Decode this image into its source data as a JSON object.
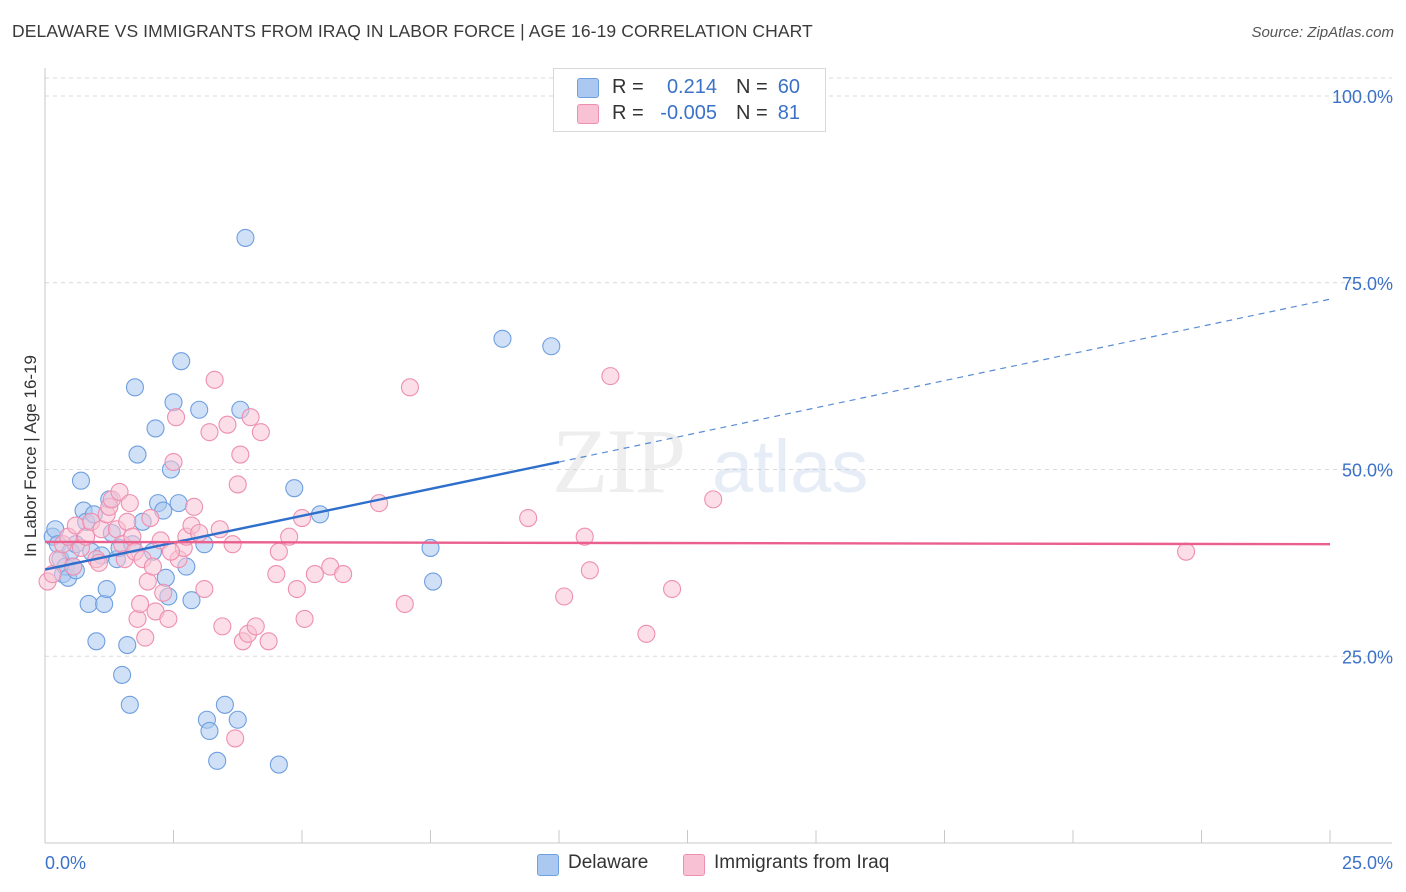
{
  "header": {
    "title": "DELAWARE VS IMMIGRANTS FROM IRAQ IN LABOR FORCE | AGE 16-19 CORRELATION CHART",
    "source": "Source: ZipAtlas.com"
  },
  "watermark": {
    "zip": "ZIP",
    "atlas": "atlas"
  },
  "legend": {
    "r_label": "R =",
    "n_label": "N =",
    "rows": [
      {
        "name": "Delaware",
        "r": "0.214",
        "n": "60",
        "fill": "#aac8f0",
        "stroke": "#6f9fe0"
      },
      {
        "name": "Immigrants from Iraq",
        "r": "-0.005",
        "n": "81",
        "fill": "#f8c2d4",
        "stroke": "#ee8fb0"
      }
    ]
  },
  "chart_data": {
    "type": "scatter",
    "title": "DELAWARE VS IMMIGRANTS FROM IRAQ IN LABOR FORCE | AGE 16-19 CORRELATION CHART",
    "xlabel": "",
    "ylabel": "In Labor Force | Age 16-19",
    "xlim": [
      0,
      25
    ],
    "ylim": [
      0,
      105
    ],
    "x_tick_labels": [
      "0.0%",
      "25.0%"
    ],
    "y_ticks": [
      25,
      50,
      75,
      100
    ],
    "y_tick_labels": [
      "25.0%",
      "50.0%",
      "75.0%",
      "100.0%"
    ],
    "grid": true,
    "series": [
      {
        "name": "Delaware",
        "color": "#6f9fe0",
        "fill": "#aac8f0",
        "trend": {
          "x0": 0,
          "y0": 36.6,
          "x1": 10.0,
          "y1": 51.0,
          "dash_to_x": 25,
          "dash_to_y": 72.8,
          "color": "#2f6fcc"
        },
        "points": [
          [
            0.15,
            41
          ],
          [
            0.2,
            42
          ],
          [
            0.25,
            40
          ],
          [
            0.3,
            38
          ],
          [
            0.35,
            36
          ],
          [
            0.4,
            37
          ],
          [
            0.45,
            35.5
          ],
          [
            0.5,
            39
          ],
          [
            0.55,
            37
          ],
          [
            0.6,
            40
          ],
          [
            0.7,
            48.5
          ],
          [
            0.75,
            44.5
          ],
          [
            0.8,
            43
          ],
          [
            0.85,
            32
          ],
          [
            0.9,
            39
          ],
          [
            1.0,
            27
          ],
          [
            1.1,
            38.5
          ],
          [
            1.15,
            32
          ],
          [
            1.2,
            34
          ],
          [
            1.25,
            46
          ],
          [
            1.3,
            41.5
          ],
          [
            1.4,
            38
          ],
          [
            1.45,
            39.5
          ],
          [
            1.5,
            22.5
          ],
          [
            1.6,
            26.5
          ],
          [
            1.65,
            18.5
          ],
          [
            1.7,
            40
          ],
          [
            1.75,
            61
          ],
          [
            1.8,
            52
          ],
          [
            1.9,
            43
          ],
          [
            2.1,
            39
          ],
          [
            2.15,
            55.5
          ],
          [
            2.2,
            45.5
          ],
          [
            2.3,
            44.5
          ],
          [
            2.35,
            35.5
          ],
          [
            2.4,
            33
          ],
          [
            2.45,
            50
          ],
          [
            2.5,
            59
          ],
          [
            2.6,
            45.5
          ],
          [
            2.65,
            64.5
          ],
          [
            2.75,
            37
          ],
          [
            2.85,
            32.5
          ],
          [
            3.0,
            58
          ],
          [
            3.1,
            40
          ],
          [
            3.15,
            16.5
          ],
          [
            3.2,
            15
          ],
          [
            3.35,
            11
          ],
          [
            3.5,
            18.5
          ],
          [
            3.75,
            16.5
          ],
          [
            3.8,
            58
          ],
          [
            3.9,
            81
          ],
          [
            4.55,
            10.5
          ],
          [
            4.85,
            47.5
          ],
          [
            5.35,
            44
          ],
          [
            7.5,
            39.5
          ],
          [
            7.55,
            35
          ],
          [
            8.9,
            67.5
          ],
          [
            9.85,
            66.5
          ],
          [
            0.6,
            36.5
          ],
          [
            0.95,
            44
          ]
        ]
      },
      {
        "name": "Immigrants from Iraq",
        "color": "#ee8fb0",
        "fill": "#f8c2d4",
        "trend": {
          "x0": 0,
          "y0": 40.3,
          "x1": 25,
          "y1": 40.0,
          "color": "#ea5f8e"
        },
        "points": [
          [
            0.05,
            35
          ],
          [
            0.15,
            36
          ],
          [
            0.25,
            38
          ],
          [
            0.35,
            40
          ],
          [
            0.45,
            41
          ],
          [
            0.55,
            37
          ],
          [
            0.6,
            42.5
          ],
          [
            0.7,
            39.5
          ],
          [
            0.8,
            41
          ],
          [
            0.9,
            43
          ],
          [
            1.0,
            38
          ],
          [
            1.05,
            37.5
          ],
          [
            1.1,
            42
          ],
          [
            1.2,
            44
          ],
          [
            1.25,
            45
          ],
          [
            1.3,
            46
          ],
          [
            1.4,
            42
          ],
          [
            1.45,
            47
          ],
          [
            1.5,
            40
          ],
          [
            1.55,
            38
          ],
          [
            1.6,
            43
          ],
          [
            1.65,
            45.5
          ],
          [
            1.7,
            41
          ],
          [
            1.75,
            39
          ],
          [
            1.8,
            30
          ],
          [
            1.85,
            32
          ],
          [
            1.9,
            38
          ],
          [
            2.0,
            35
          ],
          [
            2.05,
            43.5
          ],
          [
            2.1,
            37
          ],
          [
            2.15,
            31
          ],
          [
            2.25,
            40.5
          ],
          [
            2.3,
            33.5
          ],
          [
            2.4,
            30
          ],
          [
            2.5,
            51
          ],
          [
            2.55,
            57
          ],
          [
            2.6,
            38
          ],
          [
            2.7,
            39.5
          ],
          [
            2.75,
            41
          ],
          [
            2.85,
            42.5
          ],
          [
            2.9,
            45
          ],
          [
            3.0,
            41.5
          ],
          [
            3.1,
            34
          ],
          [
            3.2,
            55
          ],
          [
            3.3,
            62
          ],
          [
            3.4,
            42
          ],
          [
            3.45,
            29
          ],
          [
            3.55,
            56
          ],
          [
            3.65,
            40
          ],
          [
            3.7,
            14
          ],
          [
            3.75,
            48
          ],
          [
            3.8,
            52
          ],
          [
            3.85,
            27
          ],
          [
            3.95,
            28
          ],
          [
            4.0,
            57
          ],
          [
            4.1,
            29
          ],
          [
            4.2,
            55
          ],
          [
            4.35,
            27
          ],
          [
            4.5,
            36
          ],
          [
            4.55,
            39
          ],
          [
            4.75,
            41
          ],
          [
            4.9,
            34
          ],
          [
            5.0,
            43.5
          ],
          [
            5.05,
            30
          ],
          [
            5.25,
            36
          ],
          [
            5.55,
            37
          ],
          [
            5.8,
            36
          ],
          [
            6.5,
            45.5
          ],
          [
            7.0,
            32
          ],
          [
            7.1,
            61
          ],
          [
            9.4,
            43.5
          ],
          [
            10.1,
            33
          ],
          [
            10.5,
            41
          ],
          [
            10.6,
            36.5
          ],
          [
            11.0,
            62.5
          ],
          [
            11.7,
            28
          ],
          [
            12.2,
            34
          ],
          [
            13.0,
            46
          ],
          [
            22.2,
            39
          ],
          [
            2.45,
            39
          ],
          [
            1.95,
            27.5
          ]
        ]
      }
    ]
  }
}
